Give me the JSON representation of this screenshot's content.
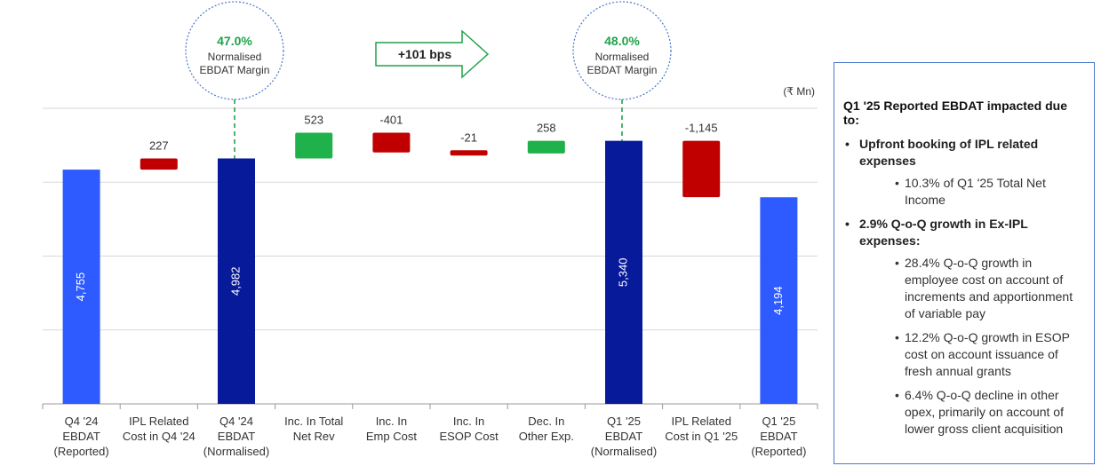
{
  "colors": {
    "reported": "#2e5bff",
    "normalised": "#061a9a",
    "increase_cost": "#c00000",
    "increase_good": "#1fb24a",
    "connector": "#1fa34a",
    "circle_border": "#4a78c9",
    "grid": "#d9d9d9"
  },
  "unit_label": "(₹ Mn)",
  "margin_bubbles": [
    {
      "pct": "47.0%",
      "line1": "Normalised",
      "line2": "EBDAT Margin"
    },
    {
      "pct": "48.0%",
      "line1": "Normalised",
      "line2": "EBDAT Margin"
    }
  ],
  "bps_arrow": {
    "label": "+101 bps"
  },
  "chart_data": {
    "type": "waterfall",
    "categories": [
      [
        "Q4 '24",
        "EBDAT",
        "(Reported)"
      ],
      [
        "IPL Related",
        "Cost in Q4 '24"
      ],
      [
        "Q4 '24",
        "EBDAT",
        "(Normalised)"
      ],
      [
        "Inc. In Total",
        "Net Rev"
      ],
      [
        "Inc. In",
        "Emp Cost"
      ],
      [
        "Inc. In",
        "ESOP Cost"
      ],
      [
        "Dec. In",
        "Other Exp."
      ],
      [
        "Q1 '25",
        "EBDAT",
        "(Normalised)"
      ],
      [
        "IPL Related",
        "Cost in Q1 '25"
      ],
      [
        "Q1 '25",
        "EBDAT",
        "(Reported)"
      ]
    ],
    "bars": [
      {
        "kind": "total-reported",
        "start": 0,
        "end": 4755,
        "label": "4,755"
      },
      {
        "kind": "step-red",
        "start": 4755,
        "end": 4982,
        "label": "227"
      },
      {
        "kind": "total-normalised",
        "start": 0,
        "end": 4982,
        "label": "4,982"
      },
      {
        "kind": "step-green",
        "start": 4982,
        "end": 5505,
        "label": "523"
      },
      {
        "kind": "step-red",
        "start": 5505,
        "end": 5104,
        "label": "-401"
      },
      {
        "kind": "step-red",
        "start": 5104,
        "end": 5083,
        "label": "-21"
      },
      {
        "kind": "step-green",
        "start": 5083,
        "end": 5341,
        "label": "258"
      },
      {
        "kind": "total-normalised",
        "start": 0,
        "end": 5340,
        "label": "5,340"
      },
      {
        "kind": "step-red",
        "start": 5340,
        "end": 4195,
        "label": "-1,145"
      },
      {
        "kind": "total-reported",
        "start": 0,
        "end": 4194,
        "label": "4,194"
      }
    ],
    "ylim": [
      0,
      6000
    ],
    "grid": true
  },
  "side_panel": {
    "heading": "Q1 '25 Reported EBDAT impacted due to:",
    "points": [
      {
        "text": "Upfront booking of IPL related expenses",
        "subpoints": [
          "10.3% of Q1 '25 Total Net Income"
        ]
      },
      {
        "text": "2.9% Q-o-Q growth in Ex-IPL expenses:",
        "subpoints": [
          "28.4% Q-o-Q growth in employee cost on account of increments and apportionment of variable pay",
          "12.2% Q-o-Q growth in ESOP cost on account issuance of fresh annual grants",
          "6.4% Q-o-Q decline in other opex, primarily on account of lower gross client acquisition"
        ]
      }
    ]
  }
}
